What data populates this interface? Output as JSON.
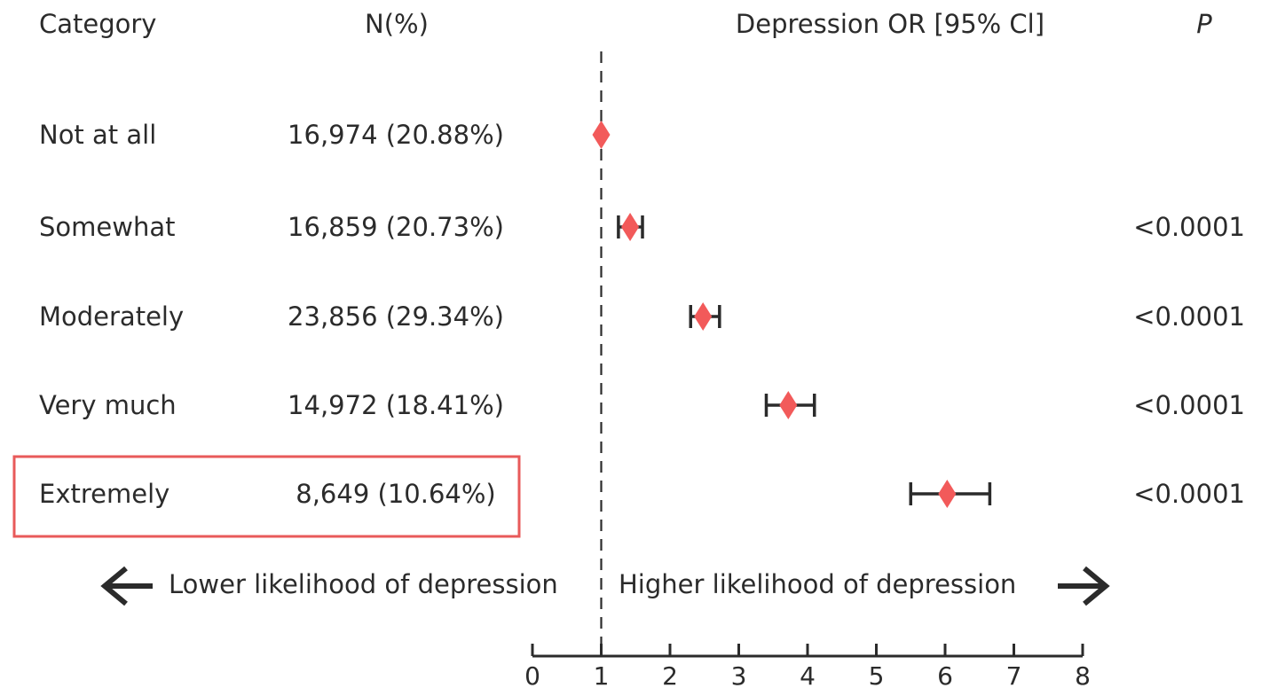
{
  "headers": {
    "category": "Category",
    "n": "N(%)",
    "or": "Depression OR [95% Cl]",
    "p": "P"
  },
  "direction_labels": {
    "lower": "Lower likelihood of depression",
    "higher": "Higher likelihood of depression"
  },
  "colors": {
    "marker": "#f25a5a",
    "highlight_box": "#e85a5a",
    "text": "#2b2b2b"
  },
  "highlighted_row": "Extremely",
  "chart_data": {
    "type": "forest",
    "reference_line": 1,
    "xlim": [
      0,
      8
    ],
    "x_ticks": [
      "0",
      "1",
      "2",
      "3",
      "4",
      "5",
      "6",
      "7",
      "8"
    ],
    "rows": [
      {
        "category": "Not at all",
        "n": "16,974 (20.88%)",
        "or": 1.0,
        "ci": null,
        "p": ""
      },
      {
        "category": "Somewhat",
        "n": "16,859 (20.73%)",
        "or": 1.42,
        "ci": [
          1.25,
          1.6
        ],
        "p": "<0.0001"
      },
      {
        "category": "Moderately",
        "n": "23,856 (29.34%)",
        "or": 2.48,
        "ci": [
          2.3,
          2.72
        ],
        "p": "<0.0001"
      },
      {
        "category": "Very much",
        "n": "14,972 (18.41%)",
        "or": 3.72,
        "ci": [
          3.4,
          4.1
        ],
        "p": "<0.0001"
      },
      {
        "category": "Extremely",
        "n": "8,649 (10.64%)",
        "or": 6.03,
        "ci": [
          5.5,
          6.65
        ],
        "p": "<0.0001"
      }
    ]
  }
}
